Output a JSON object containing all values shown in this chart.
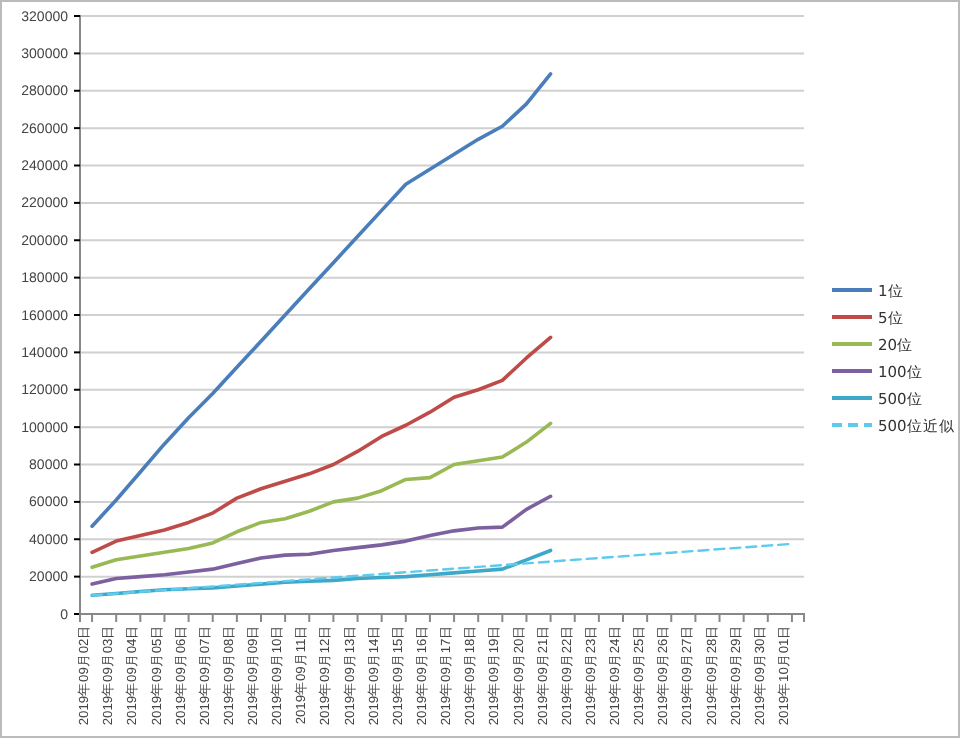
{
  "chart_data": {
    "type": "line",
    "categories": [
      "2019年09月02日",
      "2019年09月03日",
      "2019年09月04日",
      "2019年09月05日",
      "2019年09月06日",
      "2019年09月07日",
      "2019年09月08日",
      "2019年09月09日",
      "2019年09月10日",
      "2019年09月11日",
      "2019年09月12日",
      "2019年09月13日",
      "2019年09月14日",
      "2019年09月15日",
      "2019年09月16日",
      "2019年09月17日",
      "2019年09月18日",
      "2019年09月19日",
      "2019年09月20日",
      "2019年09月21日",
      "2019年09月22日",
      "2019年09月23日",
      "2019年09月24日",
      "2019年09月25日",
      "2019年09月26日",
      "2019年09月27日",
      "2019年09月28日",
      "2019年09月29日",
      "2019年09月30日",
      "2019年10月01日"
    ],
    "series": [
      {
        "name": "1位",
        "color": "#4a7ebb",
        "values": [
          47000,
          61000,
          76000,
          91000,
          105000,
          118000,
          132000,
          146000,
          160000,
          174000,
          188000,
          202000,
          216000,
          230000,
          238000,
          246000,
          254000,
          261000,
          273000,
          289000,
          null,
          null,
          null,
          null,
          null,
          null,
          null,
          null,
          null,
          null
        ]
      },
      {
        "name": "5位",
        "color": "#be4b48",
        "values": [
          33000,
          39000,
          42000,
          45000,
          49000,
          54000,
          62000,
          67000,
          71000,
          75000,
          80000,
          87000,
          95000,
          101000,
          108000,
          116000,
          120000,
          125000,
          137000,
          148000,
          null,
          null,
          null,
          null,
          null,
          null,
          null,
          null,
          null,
          null
        ]
      },
      {
        "name": "20位",
        "color": "#98b954",
        "values": [
          25000,
          29000,
          31000,
          33000,
          35000,
          38000,
          44000,
          49000,
          51000,
          55000,
          60000,
          62000,
          66000,
          72000,
          73000,
          80000,
          82000,
          84000,
          92000,
          102000,
          null,
          null,
          null,
          null,
          null,
          null,
          null,
          null,
          null,
          null
        ]
      },
      {
        "name": "100位",
        "color": "#7d60a0",
        "values": [
          16000,
          19000,
          20000,
          21000,
          22500,
          24000,
          27000,
          30000,
          31500,
          32000,
          34000,
          35500,
          37000,
          39000,
          42000,
          44500,
          46000,
          46500,
          56000,
          63000,
          null,
          null,
          null,
          null,
          null,
          null,
          null,
          null,
          null,
          null
        ]
      },
      {
        "name": "500位",
        "color": "#3fa8c8",
        "values": [
          10000,
          11000,
          12000,
          13000,
          13500,
          14000,
          15000,
          16000,
          17000,
          17500,
          18000,
          19000,
          19500,
          20000,
          21000,
          22000,
          23000,
          24000,
          29000,
          34000,
          null,
          null,
          null,
          null,
          null,
          null,
          null,
          null,
          null,
          null
        ]
      },
      {
        "name": "500位近似",
        "color": "#5ccbee",
        "line_style": "dashed",
        "values": [
          10000,
          10950,
          11900,
          12850,
          13800,
          14750,
          15700,
          16650,
          17600,
          18550,
          19500,
          20450,
          21400,
          22350,
          23300,
          24250,
          25200,
          26150,
          27100,
          28050,
          29000,
          29950,
          30900,
          31850,
          32800,
          33750,
          34700,
          35650,
          36600,
          37550
        ]
      }
    ],
    "ylim": [
      0,
      320000
    ],
    "yticks": [
      0,
      20000,
      40000,
      60000,
      80000,
      100000,
      120000,
      140000,
      160000,
      180000,
      200000,
      220000,
      240000,
      260000,
      280000,
      300000,
      320000
    ],
    "grid": "y",
    "legend": "right",
    "line_style": "solid"
  }
}
